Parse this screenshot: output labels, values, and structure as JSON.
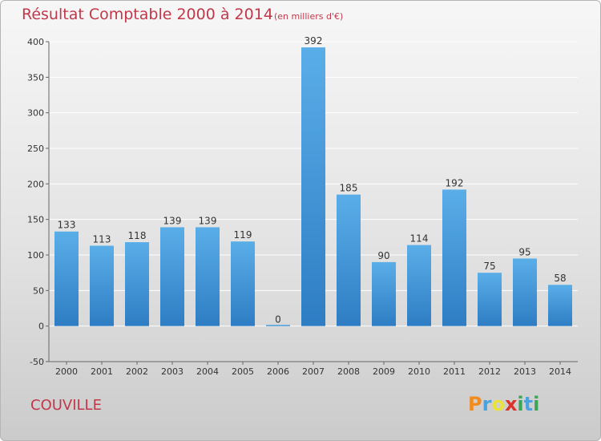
{
  "header": {
    "title": "Résultat Comptable 2000 à 2014",
    "subtitle": "(en milliers d'€)"
  },
  "footer": {
    "city": "COUVILLE",
    "logo_text": "Proxiti"
  },
  "colors": {
    "bar_top": "#5aaee8",
    "bar_bottom": "#2e7dc4",
    "title": "#c0394a",
    "logo": [
      "#f28c1e",
      "#4aa3df",
      "#e8e23a",
      "#d9342b",
      "#3aa655",
      "#4aa3df",
      "#3aa655"
    ]
  },
  "chart_data": {
    "type": "bar",
    "title": "Résultat Comptable 2000 à 2014",
    "subtitle": "(en milliers d'€)",
    "categories": [
      "2000",
      "2001",
      "2002",
      "2003",
      "2004",
      "2005",
      "2006",
      "2007",
      "2008",
      "2009",
      "2010",
      "2011",
      "2012",
      "2013",
      "2014"
    ],
    "values": [
      133,
      113,
      118,
      139,
      139,
      119,
      0,
      392,
      185,
      90,
      114,
      192,
      75,
      95,
      58
    ],
    "ylim": [
      -50,
      400
    ],
    "yticks": [
      -50,
      0,
      50,
      100,
      150,
      200,
      250,
      300,
      350,
      400
    ],
    "grid": true,
    "data_labels": true,
    "legend": "none"
  }
}
